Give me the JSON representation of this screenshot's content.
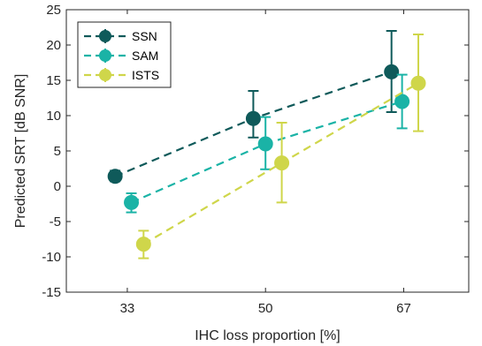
{
  "chart_data": {
    "type": "line",
    "xlabel": "IHC loss proportion [%]",
    "ylabel": "Predicted SRT [dB SNR]",
    "categories": [
      "33",
      "50",
      "67"
    ],
    "ylim": [
      -15,
      25
    ],
    "yticks": [
      "-15",
      "-10",
      "-5",
      "0",
      "5",
      "10",
      "15",
      "20",
      "25"
    ],
    "grid": false,
    "legend_position": "top-left",
    "series": [
      {
        "name": "SSN",
        "color": "#0f5a5a",
        "x": [
          31.5,
          48.5,
          65.5
        ],
        "values": [
          1.4,
          9.6,
          16.2
        ],
        "err_low": [
          0.7,
          2.7,
          5.7
        ],
        "err_high": [
          0.8,
          3.9,
          5.8
        ]
      },
      {
        "name": "SAM",
        "color": "#1ab3a6",
        "x": [
          33.5,
          50.0,
          66.8
        ],
        "values": [
          -2.3,
          6.0,
          12.0
        ],
        "err_low": [
          1.4,
          3.6,
          3.8
        ],
        "err_high": [
          1.3,
          3.8,
          3.8
        ]
      },
      {
        "name": "ISTS",
        "color": "#cfd64a",
        "x": [
          35.0,
          52.0,
          68.8
        ],
        "values": [
          -8.2,
          3.3,
          14.6
        ],
        "err_low": [
          2.0,
          5.6,
          6.8
        ],
        "err_high": [
          1.9,
          5.7,
          6.9
        ]
      }
    ]
  }
}
